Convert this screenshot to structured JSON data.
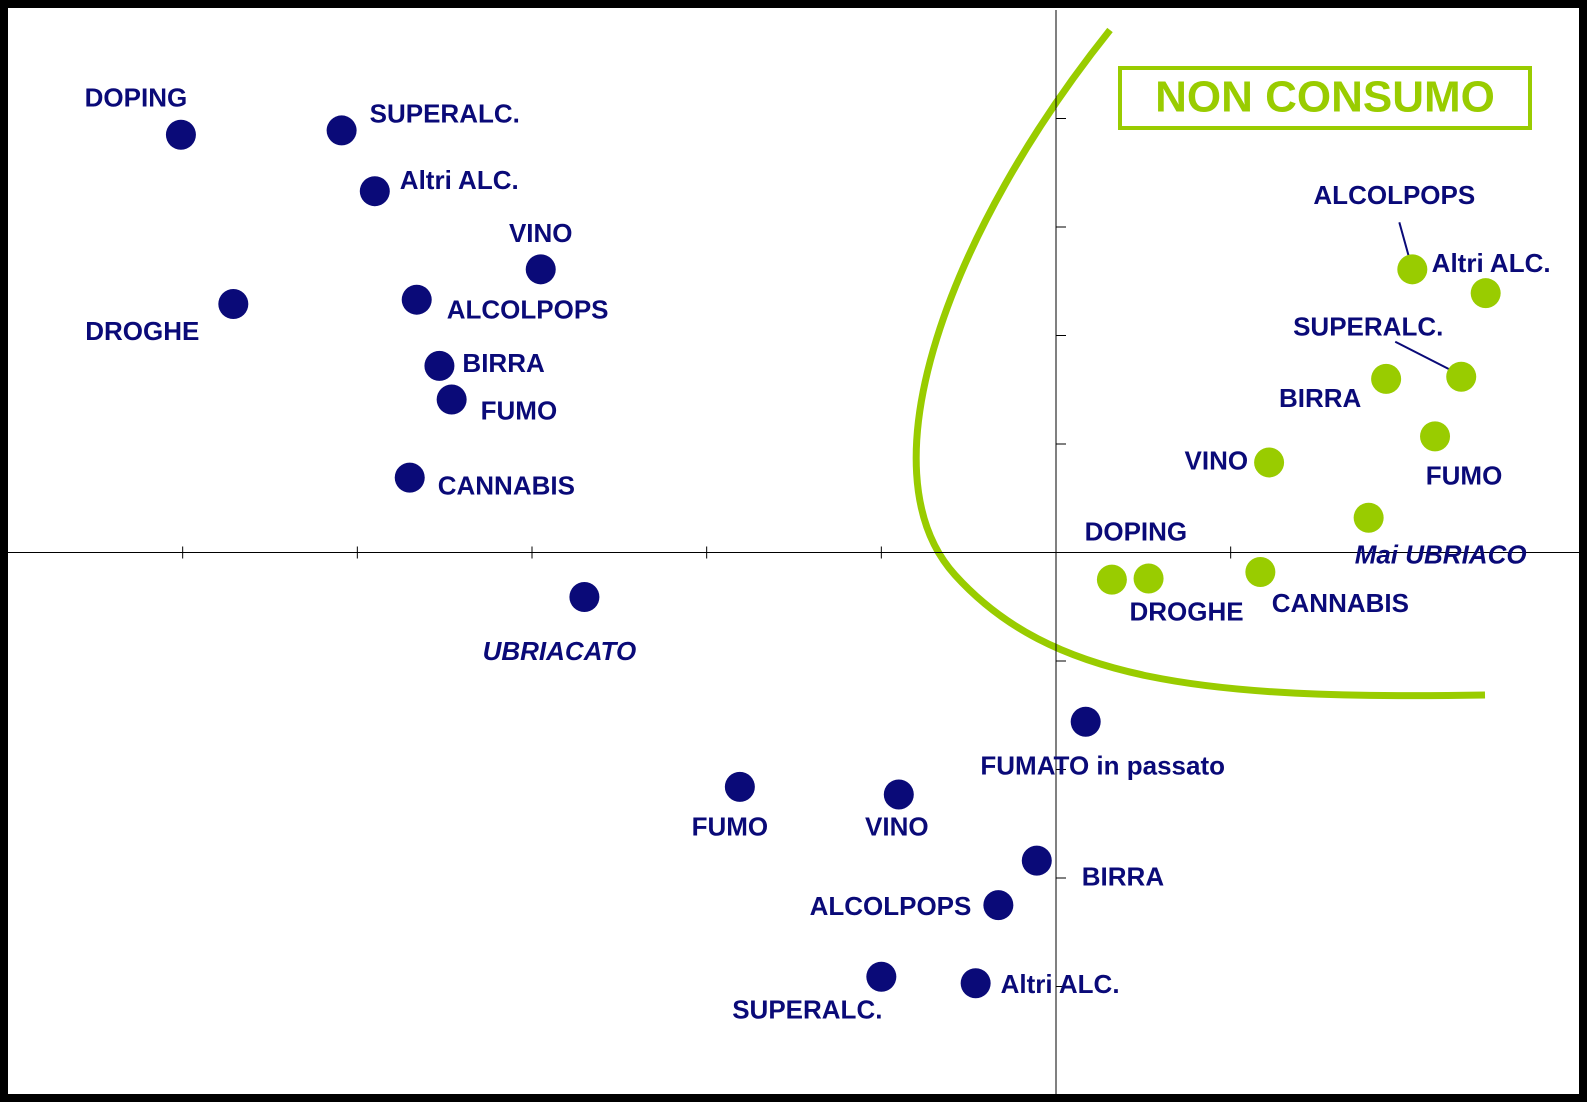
{
  "chart_data": {
    "type": "scatter",
    "annotation": "NON CONSUMO",
    "xlim": [
      -6.0,
      3.0
    ],
    "ylim": [
      -5.0,
      5.0
    ],
    "xticks": [
      -5,
      -4,
      -3,
      -2,
      -1,
      1
    ],
    "yticks": [
      4,
      3,
      2,
      1,
      -1,
      -2,
      -3,
      -4
    ],
    "series": [
      {
        "color": "#0a0a78",
        "points": [
          {
            "label": "DOPING",
            "x": -5.01,
            "y": 3.85
          },
          {
            "label": "SUPERALC.",
            "x": -4.09,
            "y": 3.89
          },
          {
            "label": "Altri ALC.",
            "x": -3.9,
            "y": 3.33
          },
          {
            "label": "VINO",
            "x": -2.95,
            "y": 2.61
          },
          {
            "label": "DROGHE",
            "x": -4.71,
            "y": 2.29
          },
          {
            "label": "ALCOLPOPS",
            "x": -3.66,
            "y": 2.33
          },
          {
            "label": "BIRRA",
            "x": -3.53,
            "y": 1.72
          },
          {
            "label": "FUMO",
            "x": -3.46,
            "y": 1.41
          },
          {
            "label": "CANNABIS",
            "x": -3.7,
            "y": 0.69
          },
          {
            "label": "UBRIACATO",
            "x": -2.7,
            "y": -0.41,
            "italic": true
          },
          {
            "label": "FUMATO  in passato",
            "x": 0.17,
            "y": -1.56
          },
          {
            "label": "FUMO",
            "x": -1.81,
            "y": -2.16
          },
          {
            "label": "VINO",
            "x": -0.9,
            "y": -2.23
          },
          {
            "label": "BIRRA",
            "x": -0.11,
            "y": -2.84
          },
          {
            "label": "ALCOLPOPS",
            "x": -0.33,
            "y": -3.25
          },
          {
            "label": "SUPERALC.",
            "x": -1.0,
            "y": -3.91
          },
          {
            "label": "Altri ALC.",
            "x": -0.46,
            "y": -3.97
          }
        ]
      },
      {
        "color": "#99cc00",
        "points": [
          {
            "label": "ALCOLPOPS",
            "x": 2.04,
            "y": 2.61
          },
          {
            "label": "Altri ALC.",
            "x": 2.46,
            "y": 2.39
          },
          {
            "label": "SUPERALC.",
            "x": 2.32,
            "y": 1.62
          },
          {
            "label": "BIRRA",
            "x": 1.89,
            "y": 1.6
          },
          {
            "label": "FUMO",
            "x": 2.17,
            "y": 1.07
          },
          {
            "label": "VINO",
            "x": 1.22,
            "y": 0.83
          },
          {
            "label": "Mai UBRIACO",
            "x": 1.79,
            "y": 0.32,
            "italic": true
          },
          {
            "label": "DOPING",
            "x": 0.32,
            "y": -0.25
          },
          {
            "label": "DROGHE",
            "x": 0.53,
            "y": -0.24
          },
          {
            "label": "CANNABIS",
            "x": 1.17,
            "y": -0.18
          }
        ]
      }
    ]
  }
}
